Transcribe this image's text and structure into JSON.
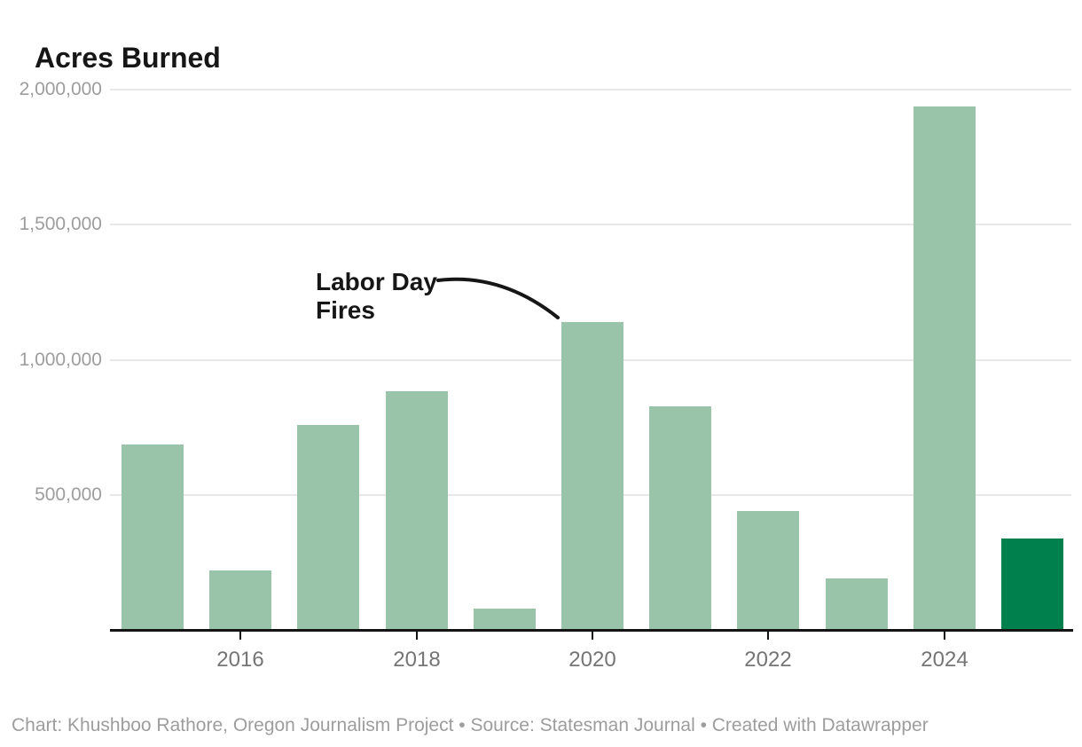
{
  "header": {
    "title": "Acres Burned"
  },
  "chart_data": {
    "type": "bar",
    "title": "Acres Burned",
    "xlabel": "",
    "ylabel": "",
    "x": [
      2015,
      2016,
      2017,
      2018,
      2019,
      2020,
      2021,
      2022,
      2023,
      2024,
      2025
    ],
    "values": [
      686000,
      220000,
      759000,
      885000,
      79000,
      1140000,
      827000,
      440000,
      190000,
      1938000,
      338000
    ],
    "series_name": "Acres Burned",
    "ylim": [
      0,
      2000000
    ],
    "yticks": [
      500000,
      1000000,
      1500000,
      2000000
    ],
    "ytick_labels": [
      "500,000",
      "1,000,000",
      "1,500,000",
      "2,000,000"
    ],
    "xticks": [
      2016,
      2018,
      2020,
      2022,
      2024
    ],
    "xtick_labels": [
      "2016",
      "2018",
      "2020",
      "2022",
      "2024"
    ],
    "grid": true,
    "legend": false,
    "bar_color": "#9ac4a9",
    "highlight_color": "#00804d",
    "highlight_year": 2025,
    "annotation": {
      "line1": "Labor Day",
      "line2": "Fires",
      "target_year": 2020
    }
  },
  "colors": {
    "bar_default": "#9ac4a9",
    "bar_highlight": "#00804d",
    "gridline": "#e8e8e8",
    "axis": "#141414",
    "y_label": "#9d9d9d",
    "x_label": "#757575",
    "text": "#161616",
    "footer": "#9d9d9d"
  },
  "footer": {
    "text": "Chart: Khushboo Rathore, Oregon Journalism Project • Source: Statesman Journal • Created with Datawrapper"
  }
}
